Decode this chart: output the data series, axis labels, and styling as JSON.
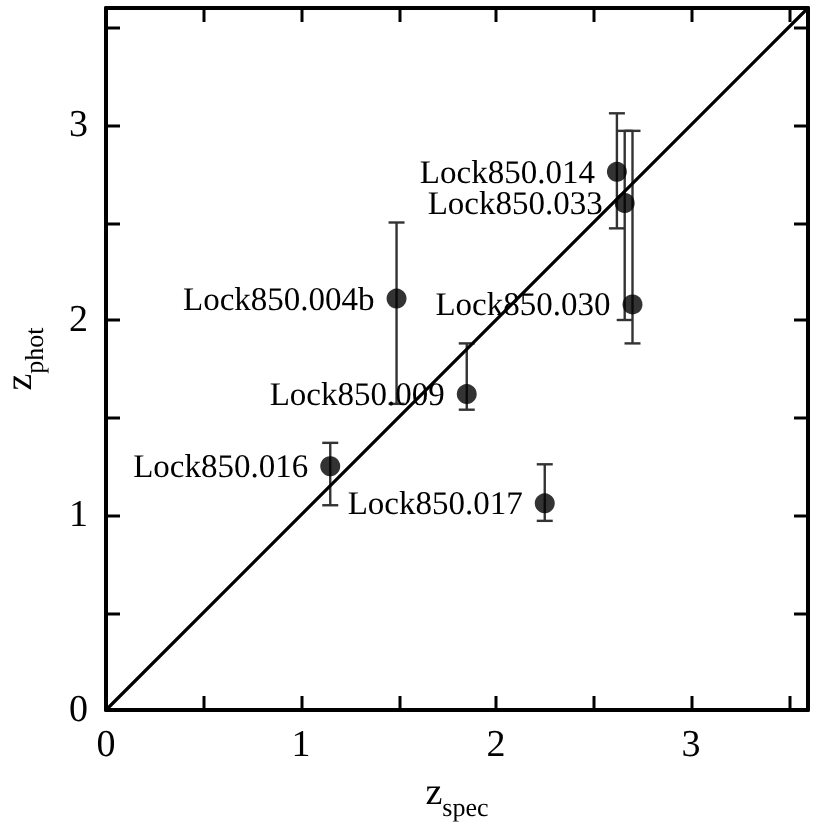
{
  "chart_data": {
    "type": "scatter",
    "xlabel": "z$_{spec}$",
    "ylabel": "z$_{phot}$",
    "xlim": [
      0,
      3.6
    ],
    "ylim": [
      0,
      3.6
    ],
    "xticks": [
      0,
      {
        "value": 0.5,
        "label": null
      },
      1,
      {
        "value": 1.5,
        "label": null
      },
      2,
      {
        "value": 2.5,
        "label": null
      },
      3,
      {
        "value": 3.5,
        "label": null
      }
    ],
    "yticks": [
      0,
      {
        "value": 0.5,
        "label": null
      },
      1,
      {
        "value": 1.5,
        "label": null
      },
      2,
      {
        "value": 2.5,
        "label": null
      },
      3,
      {
        "value": 3.5,
        "label": null
      }
    ],
    "marker": "circle",
    "series": [
      {
        "color": "#000000",
        "x": [
          1.15,
          1.49,
          1.85,
          2.25,
          2.62,
          2.66,
          2.7
        ],
        "values": [
          1.25,
          2.11,
          1.62,
          1.06,
          2.76,
          2.6,
          2.08
        ],
        "errors": [
          [
            1.05,
            1.37
          ],
          [
            1.57,
            2.5
          ],
          [
            1.54,
            1.88
          ],
          [
            0.97,
            1.26
          ],
          [
            2.47,
            3.06
          ],
          [
            2.0,
            2.97
          ],
          [
            1.88,
            2.97
          ]
        ]
      },
      {
        "type": "line",
        "color": "#000000",
        "marker": "none",
        "line_style": "solid",
        "x": [
          0,
          3.6
        ],
        "values": [
          0,
          3.6
        ]
      }
    ],
    "annotations": [
      {
        "text": "Lock850.016",
        "x": 1.15,
        "y": 1.25
      },
      {
        "text": "Lock850.004b",
        "x": 1.49,
        "y": 2.11
      },
      {
        "text": "Lock850.009",
        "x": 1.85,
        "y": 1.62
      },
      {
        "text": "Lock850.017",
        "x": 2.25,
        "y": 1.06
      },
      {
        "text": "Lock850.014",
        "x": 2.62,
        "y": 2.76
      },
      {
        "text": "Lock850.033",
        "x": 2.66,
        "y": 2.6
      },
      {
        "text": "Lock850.030",
        "x": 2.7,
        "y": 2.08
      }
    ]
  }
}
